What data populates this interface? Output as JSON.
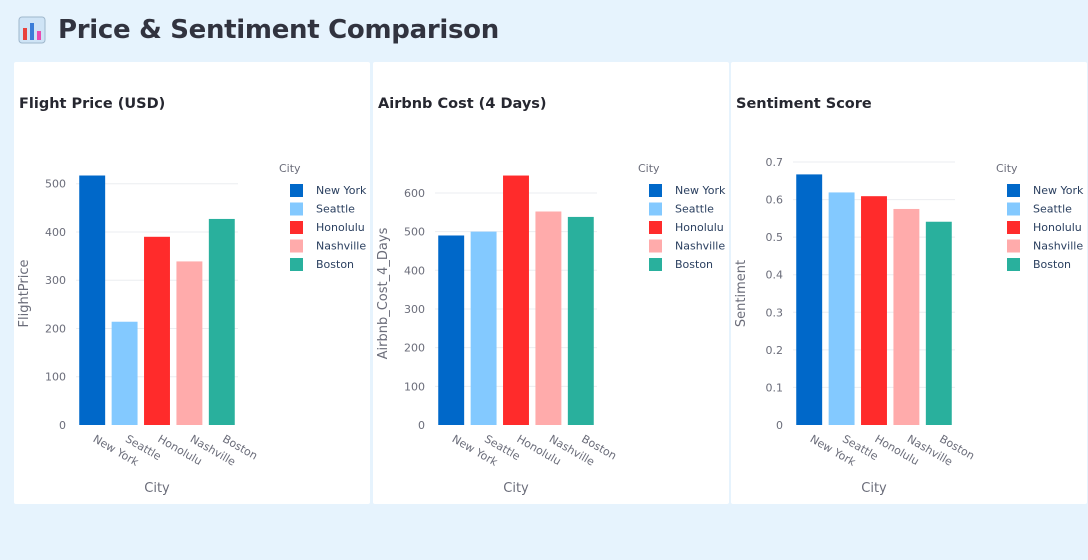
{
  "page": {
    "title": "Price & Sentiment Comparison",
    "icon": "bar-chart-icon"
  },
  "colors": {
    "background": "#e6f3fd",
    "New York": "#0068c9",
    "Seattle": "#83c9ff",
    "Honolulu": "#ff2b2b",
    "Nashville": "#ffabab",
    "Boston": "#29b09d"
  },
  "chart_data": [
    {
      "type": "bar",
      "title": "Flight Price (USD)",
      "xlabel": "City",
      "ylabel": "FlightPrice",
      "categories": [
        "New York",
        "Seattle",
        "Honolulu",
        "Nashville",
        "Boston"
      ],
      "values": [
        517,
        214,
        390,
        339,
        427
      ],
      "ylim": [
        0,
        545
      ],
      "yticks": [
        0,
        100,
        200,
        300,
        400,
        500
      ],
      "grid": true,
      "legend_title": "City",
      "legend_placement": "right"
    },
    {
      "type": "bar",
      "title": "Airbnb Cost (4 Days)",
      "xlabel": "City",
      "ylabel": "Airbnb_Cost_4_Days",
      "categories": [
        "New York",
        "Seattle",
        "Honolulu",
        "Nashville",
        "Boston"
      ],
      "values": [
        490,
        500,
        645,
        552,
        538
      ],
      "ylim": [
        0,
        680
      ],
      "yticks": [
        0,
        100,
        200,
        300,
        400,
        500,
        600
      ],
      "grid": true,
      "legend_title": "City",
      "legend_placement": "right"
    },
    {
      "type": "bar",
      "title": "Sentiment Score",
      "xlabel": "City",
      "ylabel": "Sentiment",
      "categories": [
        "New York",
        "Seattle",
        "Honolulu",
        "Nashville",
        "Boston"
      ],
      "values": [
        0.667,
        0.619,
        0.609,
        0.575,
        0.541
      ],
      "ylim": [
        0,
        0.7
      ],
      "yticks": [
        0,
        0.1,
        0.2,
        0.3,
        0.4,
        0.5,
        0.6,
        0.7
      ],
      "grid": true,
      "legend_title": "City",
      "legend_placement": "right"
    }
  ]
}
